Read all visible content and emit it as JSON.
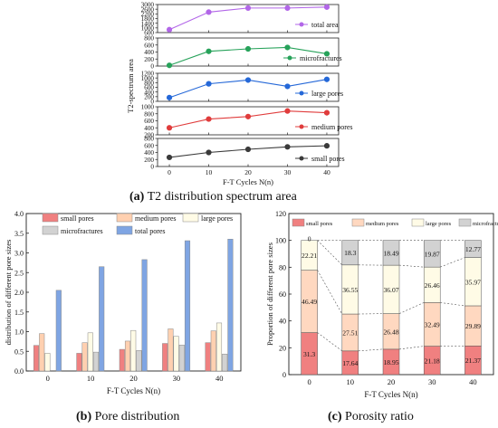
{
  "figure": {
    "caption_a": {
      "label": "(a)",
      "text": "T2 distribution spectrum area"
    },
    "caption_b": {
      "label": "(b)",
      "text": "Pore distribution"
    },
    "caption_c": {
      "label": "(c)",
      "text": "Porosity ratio"
    }
  },
  "chart_data": [
    {
      "id": "a",
      "type": "line",
      "title": "",
      "xlabel": "F-T Cycles N(n)",
      "ylabel": "T2-spectrum area",
      "x": [
        0,
        10,
        20,
        30,
        40
      ],
      "xticks": [
        "0",
        "10",
        "20",
        "30",
        "40"
      ],
      "xlim": [
        -3,
        43
      ],
      "grid": false,
      "legend": "inside-lower-right",
      "panels": [
        {
          "name": "total area",
          "color": "#b266e8",
          "values": [
            850,
            2350,
            2700,
            2700,
            2780
          ],
          "ylim": [
            600,
            3000
          ],
          "yticks": [
            600,
            1000,
            1400,
            1800,
            2200,
            2600,
            3000
          ]
        },
        {
          "name": "microfractures",
          "color": "#27a25a",
          "values": [
            20,
            420,
            490,
            530,
            350
          ],
          "ylim": [
            0,
            800
          ],
          "yticks": [
            0,
            200,
            400,
            600,
            800
          ]
        },
        {
          "name": "large pores",
          "color": "#2568d8",
          "values": [
            160,
            750,
            910,
            640,
            940
          ],
          "ylim": [
            0,
            1200
          ],
          "yticks": [
            0,
            200,
            400,
            600,
            800,
            1000,
            1200
          ]
        },
        {
          "name": "medium pores",
          "color": "#e03c3c",
          "values": [
            400,
            650,
            720,
            880,
            830
          ],
          "ylim": [
            200,
            1000
          ],
          "yticks": [
            200,
            400,
            600,
            800,
            1000
          ]
        },
        {
          "name": "small pores",
          "color": "#3a3a3a",
          "values": [
            260,
            400,
            490,
            560,
            590
          ],
          "ylim": [
            0,
            800
          ],
          "yticks": [
            0,
            200,
            400,
            600,
            800
          ]
        }
      ]
    },
    {
      "id": "b",
      "type": "bar",
      "title": "",
      "xlabel": "F-T Cycles N(n)",
      "ylabel": "distribution of different pore sizes",
      "categories": [
        "0",
        "10",
        "20",
        "30",
        "40"
      ],
      "ylim": [
        0,
        4.0
      ],
      "yticks": [
        "0.0",
        "0.5",
        "1.0",
        "1.5",
        "2.0",
        "2.5",
        "3.0",
        "3.5",
        "4.0"
      ],
      "grid": false,
      "legend": "top",
      "series": [
        {
          "name": "small pores",
          "color": "#f08080",
          "values": [
            0.65,
            0.45,
            0.55,
            0.7,
            0.72
          ]
        },
        {
          "name": "medium pores",
          "color": "#ffd0b0",
          "values": [
            0.95,
            0.72,
            0.76,
            1.07,
            1.02
          ]
        },
        {
          "name": "large pores",
          "color": "#fffbe6",
          "values": [
            0.45,
            0.97,
            1.03,
            0.88,
            1.22
          ]
        },
        {
          "name": "microfractures",
          "color": "#d2d2d2",
          "values": [
            0.0,
            0.48,
            0.52,
            0.66,
            0.43
          ]
        },
        {
          "name": "total pores",
          "color": "#7fa5e3",
          "values": [
            2.05,
            2.65,
            2.83,
            3.31,
            3.35
          ]
        }
      ]
    },
    {
      "id": "c",
      "type": "bar",
      "stacked": true,
      "title": "",
      "xlabel": "F-T Cycles N(n)",
      "ylabel": "Proportion of different pore sizes",
      "categories": [
        "0",
        "10",
        "20",
        "30",
        "40"
      ],
      "ylim": [
        0,
        120
      ],
      "yticks": [
        "0",
        "20",
        "40",
        "60",
        "80",
        "100",
        "120"
      ],
      "grid": false,
      "legend": "top",
      "series": [
        {
          "name": "small pores",
          "color": "#f08080",
          "values": [
            31.3,
            17.64,
            18.95,
            21.18,
            21.37
          ],
          "labels": [
            "31.3",
            "17.64",
            "18.95",
            "21.18",
            "21.37"
          ]
        },
        {
          "name": "medium pores",
          "color": "#ffd8c0",
          "values": [
            46.49,
            27.51,
            26.48,
            32.49,
            29.89
          ],
          "labels": [
            "46.49",
            "27.51",
            "26.48",
            "32.49",
            "29.89"
          ]
        },
        {
          "name": "large pores",
          "color": "#fffbe6",
          "values": [
            22.21,
            36.55,
            36.07,
            26.46,
            35.97
          ],
          "labels": [
            "22.21",
            "36.55",
            "36.07",
            "26.46",
            "35.97"
          ]
        },
        {
          "name": "microfractures",
          "color": "#d2d2d2",
          "values": [
            0,
            18.3,
            18.49,
            19.87,
            12.77
          ],
          "labels": [
            "0",
            "18.3",
            "18.49",
            "19.87",
            "12.77"
          ]
        }
      ]
    }
  ]
}
